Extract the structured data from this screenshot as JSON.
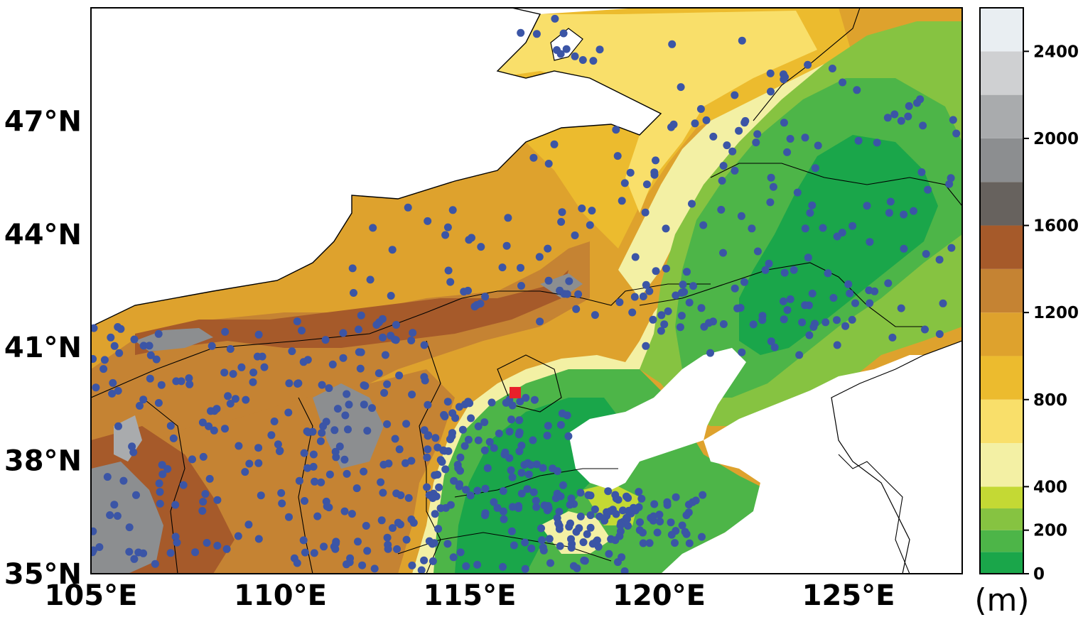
{
  "map": {
    "extent": {
      "lon_min": 105,
      "lon_max": 128,
      "lat_min": 35,
      "lat_max": 50
    },
    "lat_ticks": [
      {
        "value": 47,
        "label": "47°N"
      },
      {
        "value": 44,
        "label": "44°N"
      },
      {
        "value": 41,
        "label": "41°N"
      },
      {
        "value": 38,
        "label": "38°N"
      },
      {
        "value": 35,
        "label": "35°N"
      }
    ],
    "lon_ticks": [
      {
        "value": 105,
        "label": "105°E"
      },
      {
        "value": 110,
        "label": "110°E"
      },
      {
        "value": 115,
        "label": "115°E"
      },
      {
        "value": 120,
        "label": "120°E"
      },
      {
        "value": 125,
        "label": "125°E"
      }
    ],
    "marker": {
      "lon": 116.2,
      "lat": 39.8,
      "color": "#e8202a"
    },
    "station_color": "#3b55a6"
  },
  "colorbar": {
    "unit": "(m)",
    "ticks": [
      {
        "value": 0,
        "label": "0"
      },
      {
        "value": 200,
        "label": "200"
      },
      {
        "value": 400,
        "label": "400"
      },
      {
        "value": 800,
        "label": "800"
      },
      {
        "value": 1200,
        "label": "1200"
      },
      {
        "value": 1600,
        "label": "1600"
      },
      {
        "value": 2000,
        "label": "2000"
      },
      {
        "value": 2400,
        "label": "2400"
      }
    ],
    "levels": [
      {
        "from": 0,
        "to": 100,
        "color": "#1aa64a"
      },
      {
        "from": 100,
        "to": 200,
        "color": "#4db548"
      },
      {
        "from": 200,
        "to": 300,
        "color": "#86c341"
      },
      {
        "from": 300,
        "to": 400,
        "color": "#c4d934"
      },
      {
        "from": 400,
        "to": 600,
        "color": "#f3f0a4"
      },
      {
        "from": 600,
        "to": 800,
        "color": "#f9df6a"
      },
      {
        "from": 800,
        "to": 1000,
        "color": "#ecbb2e"
      },
      {
        "from": 1000,
        "to": 1200,
        "color": "#dea22d"
      },
      {
        "from": 1200,
        "to": 1400,
        "color": "#c58333"
      },
      {
        "from": 1400,
        "to": 1600,
        "color": "#a65a2a"
      },
      {
        "from": 1600,
        "to": 1800,
        "color": "#67625e"
      },
      {
        "from": 1800,
        "to": 2000,
        "color": "#8c8e90"
      },
      {
        "from": 2000,
        "to": 2200,
        "color": "#a9abad"
      },
      {
        "from": 2200,
        "to": 2400,
        "color": "#cfd0d2"
      },
      {
        "from": 2400,
        "to": 2600,
        "color": "#e9eef2"
      }
    ]
  }
}
